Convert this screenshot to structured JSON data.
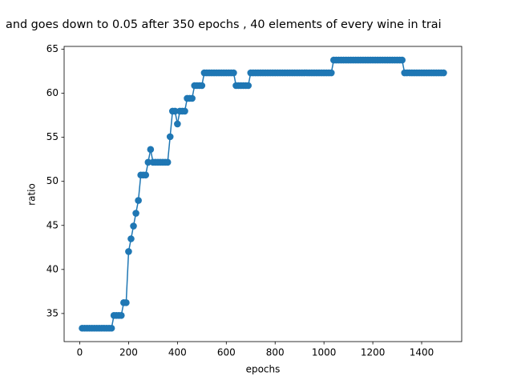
{
  "chart_data": {
    "type": "line",
    "title": "and goes down to 0.05 after 350 epochs , 40 elements of every wine in trai",
    "xlabel": "epochs",
    "ylabel": "ratio",
    "x": [
      10,
      20,
      30,
      40,
      50,
      60,
      70,
      80,
      90,
      100,
      110,
      120,
      130,
      140,
      150,
      160,
      170,
      180,
      190,
      200,
      210,
      220,
      230,
      240,
      250,
      260,
      270,
      280,
      290,
      300,
      310,
      320,
      330,
      340,
      350,
      360,
      370,
      380,
      390,
      400,
      410,
      420,
      430,
      440,
      450,
      460,
      470,
      480,
      490,
      500,
      510,
      520,
      530,
      540,
      550,
      560,
      570,
      580,
      590,
      600,
      610,
      620,
      630,
      640,
      650,
      660,
      670,
      680,
      690,
      700,
      710,
      720,
      730,
      740,
      750,
      760,
      770,
      780,
      790,
      800,
      810,
      820,
      830,
      840,
      850,
      860,
      870,
      880,
      890,
      900,
      910,
      920,
      930,
      940,
      950,
      960,
      970,
      980,
      990,
      1000,
      1010,
      1020,
      1030,
      1040,
      1050,
      1060,
      1070,
      1080,
      1090,
      1100,
      1110,
      1120,
      1130,
      1140,
      1150,
      1160,
      1170,
      1180,
      1190,
      1200,
      1210,
      1220,
      1230,
      1240,
      1250,
      1260,
      1270,
      1280,
      1290,
      1300,
      1310,
      1320,
      1330,
      1340,
      1350,
      1360,
      1370,
      1380,
      1390,
      1400,
      1410,
      1420,
      1430,
      1440,
      1450,
      1460,
      1470,
      1480,
      1490
    ],
    "series": [
      {
        "color": "#1f77b4",
        "values": [
          33.33,
          33.33,
          33.33,
          33.33,
          33.33,
          33.33,
          33.33,
          33.33,
          33.33,
          33.33,
          33.33,
          33.33,
          33.33,
          34.78,
          34.78,
          34.78,
          34.78,
          36.23,
          36.23,
          42.03,
          43.48,
          44.93,
          46.38,
          47.83,
          50.72,
          50.72,
          50.72,
          52.17,
          53.62,
          52.17,
          52.17,
          52.17,
          52.17,
          52.17,
          52.17,
          52.17,
          55.07,
          57.97,
          57.97,
          56.52,
          57.97,
          57.97,
          57.97,
          59.42,
          59.42,
          59.42,
          60.87,
          60.87,
          60.87,
          60.87,
          62.32,
          62.32,
          62.32,
          62.32,
          62.32,
          62.32,
          62.32,
          62.32,
          62.32,
          62.32,
          62.32,
          62.32,
          62.32,
          60.87,
          60.87,
          60.87,
          60.87,
          60.87,
          60.87,
          62.32,
          62.32,
          62.32,
          62.32,
          62.32,
          62.32,
          62.32,
          62.32,
          62.32,
          62.32,
          62.32,
          62.32,
          62.32,
          62.32,
          62.32,
          62.32,
          62.32,
          62.32,
          62.32,
          62.32,
          62.32,
          62.32,
          62.32,
          62.32,
          62.32,
          62.32,
          62.32,
          62.32,
          62.32,
          62.32,
          62.32,
          62.32,
          62.32,
          62.32,
          63.77,
          63.77,
          63.77,
          63.77,
          63.77,
          63.77,
          63.77,
          63.77,
          63.77,
          63.77,
          63.77,
          63.77,
          63.77,
          63.77,
          63.77,
          63.77,
          63.77,
          63.77,
          63.77,
          63.77,
          63.77,
          63.77,
          63.77,
          63.77,
          63.77,
          63.77,
          63.77,
          63.77,
          63.77,
          62.32,
          62.32,
          62.32,
          62.32,
          62.32,
          62.32,
          62.32,
          62.32,
          62.32,
          62.32,
          62.32,
          62.32,
          62.32,
          62.32,
          62.32,
          62.32,
          62.32
        ]
      }
    ],
    "xlim": [
      -64,
      1564
    ],
    "xticks": [
      0,
      200,
      400,
      600,
      800,
      1000,
      1200,
      1400
    ],
    "ylim": [
      31.81,
      65.32
    ],
    "yticks": [
      35,
      40,
      45,
      50,
      55,
      60,
      65
    ]
  }
}
